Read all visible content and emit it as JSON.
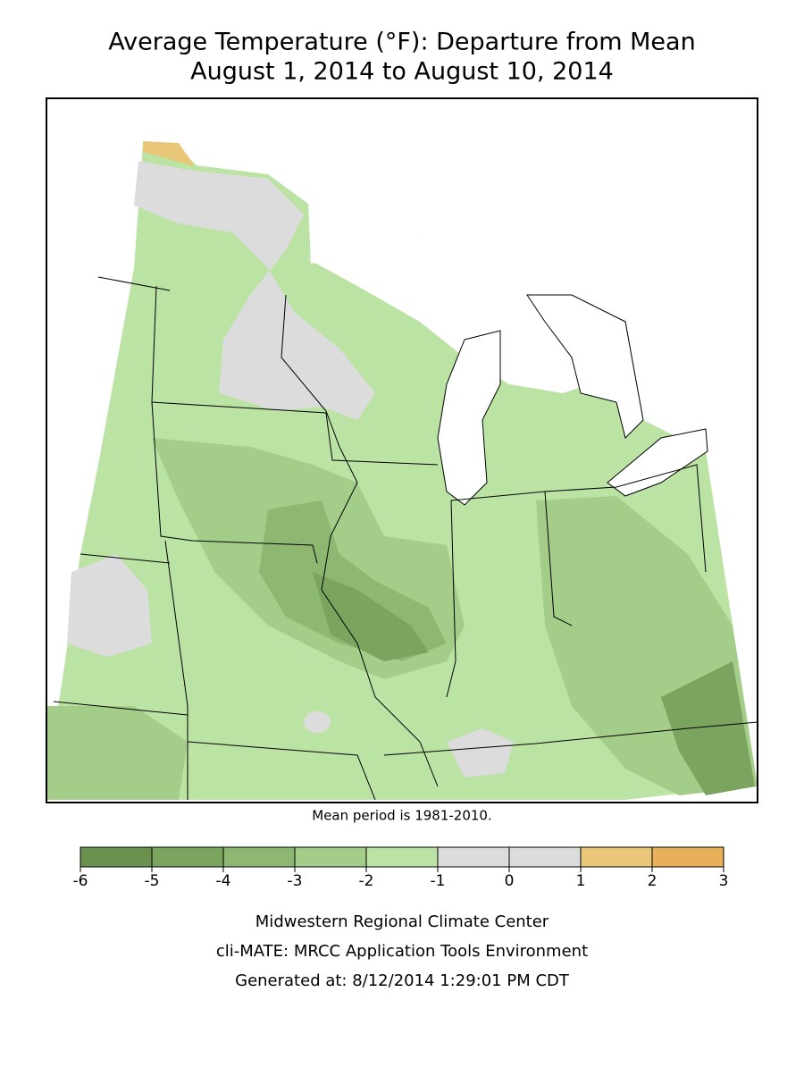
{
  "title": [
    "Average Temperature (°F): Departure from Mean",
    "August 1, 2014 to August 10, 2014"
  ],
  "note": "Mean period is 1981-2010.",
  "legend": {
    "ticks": [
      -6,
      -5,
      -4,
      -3,
      -2,
      -1,
      0,
      1,
      2,
      3
    ],
    "colors": [
      "#6b914f",
      "#7ba45f",
      "#8eb872",
      "#a5cd8a",
      "#bbe3a4",
      "#dcdcdc",
      "#dcdcdc",
      "#e8c878",
      "#e8b058"
    ]
  },
  "footer": [
    "Midwestern Regional Climate Center",
    "cli-MATE: MRCC Application Tools Environment",
    "Generated at: 8/12/2014 1:29:01 PM CDT"
  ]
}
